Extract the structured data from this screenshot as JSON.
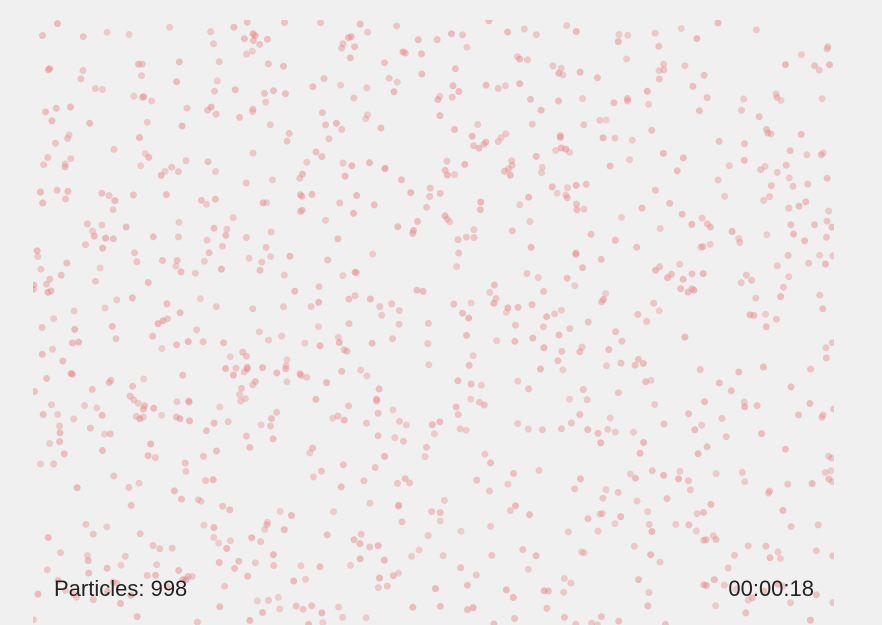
{
  "simulation": {
    "particle_count": 998,
    "particle_color": "#e98a8a",
    "background_color": "#f0f0f0"
  },
  "hud": {
    "particles_label": "Particles: 998",
    "timer": "00:00:18"
  }
}
